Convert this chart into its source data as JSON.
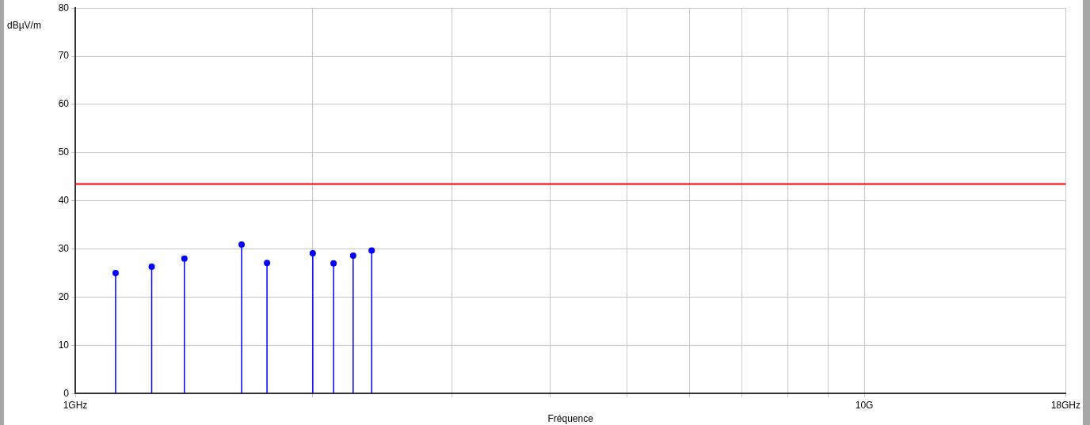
{
  "chart_data": {
    "type": "lollipop",
    "xlabel": "Fréquence",
    "ylabel": "dBµV/m",
    "x": [
      1.125,
      1.25,
      1.375,
      1.625,
      1.75,
      2.0,
      2.125,
      2.25,
      2.375
    ],
    "series": [
      {
        "color": "#0000ff",
        "values": [
          25.0,
          26.3,
          28.0,
          30.9,
          27.1,
          29.1,
          27.0,
          28.6,
          29.7
        ]
      }
    ],
    "log": "x",
    "xlim": [
      1,
      18
    ],
    "xticks": [
      {
        "value": 1,
        "label": "1GHz"
      },
      {
        "value": 2,
        "label": null
      },
      {
        "value": 3,
        "label": null
      },
      {
        "value": 4,
        "label": null
      },
      {
        "value": 5,
        "label": null
      },
      {
        "value": 6,
        "label": null
      },
      {
        "value": 7,
        "label": null
      },
      {
        "value": 8,
        "label": null
      },
      {
        "value": 9,
        "label": null
      },
      {
        "value": 10,
        "label": "10G"
      },
      {
        "value": 18,
        "label": "18GHz"
      }
    ],
    "ylim": [
      0,
      80
    ],
    "yticks": [
      0,
      10,
      20,
      30,
      40,
      50,
      60,
      70,
      80
    ],
    "ref_lines": [
      {
        "axis": "y",
        "value": 43.5,
        "color": "#ff0000"
      }
    ],
    "grid": true,
    "legend": false,
    "marker": "circle"
  }
}
